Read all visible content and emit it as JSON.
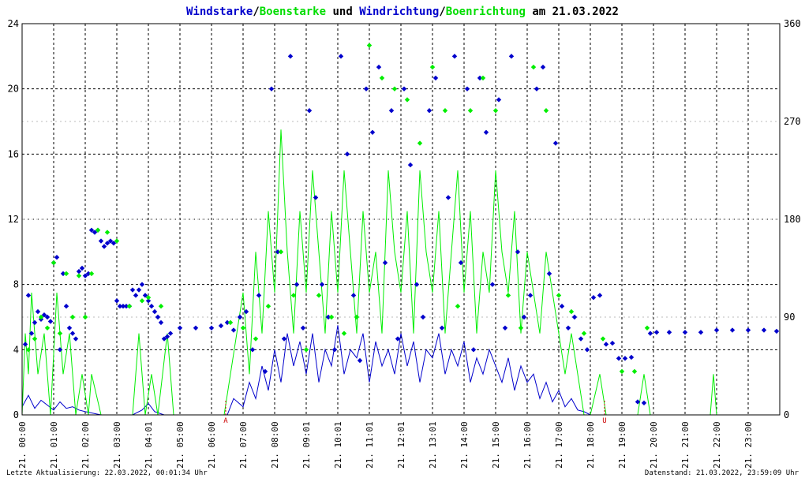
{
  "title": {
    "part1": "Windstarke",
    "sep1": "/",
    "part2": "Boenstarke",
    "part3": " und ",
    "part4": "Windrichtung",
    "sep2": "/",
    "part5": "Boenrichtung",
    "part6": " am 21.03.2022"
  },
  "footer": {
    "left": "Letzte Aktualisierung: 22.03.2022, 00:01:34 Uhr",
    "right": "Datenstand: 21.03.2022, 23:59:09 Uhr"
  },
  "colors": {
    "wind": "#0000cc",
    "gust": "#00ee00",
    "grid": "#000000",
    "marker": "#cc0000",
    "text": "#000000"
  },
  "chart_data": {
    "type": "line",
    "x_unit": "hour of day",
    "xlim": [
      0,
      24
    ],
    "ylim_left": [
      0,
      24
    ],
    "ylim_right": [
      0,
      360
    ],
    "yticks_left": [
      "0",
      "4",
      "8",
      "12",
      "16",
      "20",
      "24"
    ],
    "yticks_right": [
      "0",
      "90",
      "180",
      "270",
      "360"
    ],
    "xtick_labels": [
      "21. 00:00",
      "21. 01:00",
      "21. 02:00",
      "21. 03:00",
      "21. 04:01",
      "21. 05:00",
      "21. 06:00",
      "21. 07:00",
      "21. 08:00",
      "21. 09:01",
      "21. 10:01",
      "21. 11:01",
      "21. 12:01",
      "21. 13:01",
      "21. 14:00",
      "21. 15:00",
      "21. 16:00",
      "21. 17:00",
      "21. 18:00",
      "21. 19:00",
      "21. 20:00",
      "21. 21:00",
      "21. 22:00",
      "21. 23:00"
    ],
    "events": [
      {
        "label": "A",
        "x": 6.45
      },
      {
        "label": "U",
        "x": 18.45
      }
    ],
    "series": [
      {
        "name": "Windstarke",
        "axis": "left",
        "style": "line",
        "x": [
          0.0,
          0.2,
          0.4,
          0.6,
          0.8,
          1.0,
          1.2,
          1.4,
          1.6,
          1.8,
          2.0,
          2.5,
          3.0,
          3.5,
          3.8,
          4.0,
          4.2,
          4.5,
          5.0,
          5.5,
          6.0,
          6.5,
          6.7,
          7.0,
          7.2,
          7.4,
          7.6,
          7.8,
          8.0,
          8.2,
          8.4,
          8.6,
          8.8,
          9.0,
          9.2,
          9.4,
          9.6,
          9.8,
          10.0,
          10.2,
          10.4,
          10.6,
          10.8,
          11.0,
          11.2,
          11.4,
          11.6,
          11.8,
          12.0,
          12.2,
          12.4,
          12.6,
          12.8,
          13.0,
          13.2,
          13.4,
          13.6,
          13.8,
          14.0,
          14.2,
          14.4,
          14.6,
          14.8,
          15.0,
          15.2,
          15.4,
          15.6,
          15.8,
          16.0,
          16.2,
          16.4,
          16.6,
          16.8,
          17.0,
          17.2,
          17.4,
          17.6,
          17.8,
          18.0,
          18.5,
          19.0,
          19.5,
          20.0,
          21.0,
          22.0,
          23.0,
          23.9
        ],
        "y": [
          0.5,
          1.2,
          0.4,
          0.9,
          0.6,
          0.3,
          0.8,
          0.4,
          0.5,
          0.3,
          0.2,
          0.0,
          0.0,
          0.0,
          0.3,
          0.7,
          0.2,
          0.0,
          0.0,
          0.0,
          0.0,
          0.0,
          1.0,
          0.5,
          2.0,
          1.0,
          3.0,
          1.5,
          4.0,
          2.0,
          5.0,
          3.0,
          4.5,
          2.5,
          5.0,
          2.0,
          4.0,
          3.0,
          5.5,
          2.5,
          4.0,
          3.5,
          5.0,
          2.0,
          4.5,
          3.0,
          4.0,
          2.5,
          5.0,
          3.0,
          4.5,
          2.0,
          4.0,
          3.5,
          5.0,
          2.5,
          4.0,
          3.0,
          4.5,
          2.0,
          3.5,
          2.5,
          4.0,
          3.0,
          2.0,
          3.5,
          1.5,
          3.0,
          2.0,
          2.5,
          1.0,
          2.0,
          0.8,
          1.5,
          0.5,
          1.0,
          0.3,
          0.2,
          0.0,
          0.0,
          0.0,
          0.0,
          0.0,
          0.0,
          0.0,
          0.0,
          0.0
        ]
      },
      {
        "name": "Boenstarke",
        "axis": "left",
        "style": "line",
        "x": [
          0.0,
          0.1,
          0.2,
          0.3,
          0.5,
          0.7,
          0.9,
          1.1,
          1.3,
          1.5,
          1.7,
          1.9,
          2.1,
          2.2,
          2.5,
          3.5,
          3.7,
          3.9,
          4.1,
          4.3,
          4.6,
          4.8,
          5.0,
          6.4,
          6.6,
          6.8,
          7.0,
          7.2,
          7.4,
          7.6,
          7.8,
          8.0,
          8.2,
          8.4,
          8.6,
          8.8,
          9.0,
          9.2,
          9.4,
          9.6,
          9.8,
          10.0,
          10.2,
          10.4,
          10.6,
          10.8,
          11.0,
          11.2,
          11.4,
          11.6,
          11.8,
          12.0,
          12.2,
          12.4,
          12.6,
          12.8,
          13.0,
          13.2,
          13.4,
          13.6,
          13.8,
          14.0,
          14.2,
          14.4,
          14.6,
          14.8,
          15.0,
          15.2,
          15.4,
          15.6,
          15.8,
          16.0,
          16.2,
          16.4,
          16.6,
          16.8,
          17.0,
          17.2,
          17.4,
          17.6,
          17.8,
          18.0,
          18.3,
          18.5,
          19.0,
          19.5,
          19.7,
          19.9,
          20.1,
          21.5,
          21.8,
          21.9,
          22.0,
          23.9
        ],
        "y": [
          0.0,
          5.0,
          2.5,
          7.5,
          2.5,
          5.0,
          0.0,
          7.5,
          2.5,
          5.0,
          0.0,
          2.5,
          0.0,
          2.5,
          0.0,
          0.0,
          5.0,
          0.0,
          2.5,
          0.0,
          5.0,
          0.0,
          0.0,
          0.0,
          2.5,
          5.0,
          7.5,
          2.5,
          10.0,
          5.0,
          12.5,
          7.5,
          17.5,
          10.0,
          5.0,
          12.5,
          7.5,
          15.0,
          10.0,
          5.0,
          12.5,
          7.5,
          15.0,
          10.0,
          5.0,
          12.5,
          7.5,
          10.0,
          5.0,
          15.0,
          10.0,
          7.5,
          12.5,
          5.0,
          15.0,
          10.0,
          7.5,
          12.5,
          5.0,
          10.0,
          15.0,
          7.5,
          12.5,
          5.0,
          10.0,
          7.5,
          15.0,
          10.0,
          7.5,
          12.5,
          5.0,
          10.0,
          7.5,
          5.0,
          10.0,
          7.5,
          5.0,
          2.5,
          5.0,
          2.5,
          0.0,
          0.0,
          2.5,
          0.0,
          0.0,
          0.0,
          2.5,
          0.0,
          0.0,
          0.0,
          0.0,
          2.5,
          0.0,
          0.0
        ]
      },
      {
        "name": "Windrichtung",
        "axis": "right",
        "style": "points",
        "x": [
          0.1,
          0.2,
          0.3,
          0.4,
          0.5,
          0.6,
          0.7,
          0.8,
          0.9,
          1.0,
          1.1,
          1.2,
          1.3,
          1.4,
          1.5,
          1.6,
          1.7,
          1.8,
          1.9,
          2.0,
          2.1,
          2.2,
          2.3,
          2.4,
          2.5,
          2.6,
          2.7,
          2.8,
          2.9,
          3.0,
          3.1,
          3.2,
          3.3,
          3.4,
          3.5,
          3.6,
          3.7,
          3.8,
          3.9,
          4.0,
          4.1,
          4.2,
          4.3,
          4.4,
          4.5,
          4.6,
          4.7,
          5.0,
          5.5,
          6.0,
          6.3,
          6.5,
          6.7,
          6.9,
          7.1,
          7.3,
          7.5,
          7.7,
          7.9,
          8.1,
          8.3,
          8.5,
          8.7,
          8.9,
          9.1,
          9.3,
          9.5,
          9.7,
          9.9,
          10.1,
          10.3,
          10.5,
          10.7,
          10.9,
          11.1,
          11.3,
          11.5,
          11.7,
          11.9,
          12.1,
          12.3,
          12.5,
          12.7,
          12.9,
          13.1,
          13.3,
          13.5,
          13.7,
          13.9,
          14.1,
          14.3,
          14.5,
          14.7,
          14.9,
          15.1,
          15.3,
          15.5,
          15.7,
          15.9,
          16.1,
          16.3,
          16.5,
          16.7,
          16.9,
          17.1,
          17.3,
          17.5,
          17.7,
          17.9,
          18.1,
          18.3,
          18.5,
          18.7,
          18.9,
          19.1,
          19.3,
          19.5,
          19.7,
          19.9,
          20.1,
          20.5,
          21.0,
          21.5,
          22.0,
          22.5,
          23.0,
          23.5,
          23.9
        ],
        "y": [
          65,
          110,
          75,
          85,
          95,
          88,
          92,
          90,
          86,
          140,
          145,
          60,
          130,
          100,
          80,
          75,
          70,
          132,
          135,
          128,
          130,
          170,
          168,
          170,
          160,
          155,
          158,
          160,
          158,
          105,
          100,
          100,
          100,
          100,
          115,
          110,
          115,
          120,
          110,
          105,
          100,
          95,
          90,
          85,
          70,
          72,
          75,
          80,
          80,
          80,
          82,
          85,
          78,
          90,
          95,
          60,
          110,
          40,
          300,
          150,
          70,
          330,
          120,
          80,
          280,
          200,
          120,
          90,
          60,
          330,
          240,
          110,
          50,
          300,
          260,
          320,
          140,
          280,
          70,
          300,
          230,
          120,
          90,
          280,
          310,
          80,
          200,
          330,
          140,
          300,
          60,
          310,
          260,
          120,
          290,
          80,
          330,
          150,
          90,
          110,
          300,
          320,
          130,
          250,
          100,
          80,
          90,
          70,
          60,
          108,
          110,
          65,
          66,
          52,
          52,
          53,
          12,
          11,
          75,
          76,
          76,
          76,
          76,
          78,
          78,
          78,
          78,
          77
        ]
      },
      {
        "name": "Boenrichtung",
        "axis": "right",
        "style": "points",
        "x": [
          0.2,
          0.4,
          0.6,
          0.8,
          1.0,
          1.2,
          1.4,
          1.6,
          1.8,
          2.0,
          2.2,
          2.4,
          2.7,
          3.0,
          3.4,
          3.8,
          4.0,
          4.4,
          6.6,
          7.0,
          7.4,
          7.8,
          8.2,
          8.6,
          9.0,
          9.4,
          9.8,
          10.2,
          10.6,
          11.0,
          11.4,
          11.8,
          12.2,
          12.6,
          13.0,
          13.4,
          13.8,
          14.2,
          14.6,
          15.0,
          15.4,
          15.8,
          16.2,
          16.6,
          17.0,
          17.4,
          17.8,
          18.4,
          19.0,
          19.4,
          19.8
        ],
        "y": [
          60,
          70,
          90,
          80,
          140,
          75,
          130,
          90,
          128,
          90,
          130,
          170,
          168,
          160,
          100,
          105,
          108,
          100,
          85,
          80,
          70,
          100,
          150,
          110,
          60,
          110,
          90,
          75,
          90,
          340,
          310,
          300,
          290,
          250,
          320,
          280,
          100,
          280,
          310,
          280,
          110,
          80,
          320,
          280,
          110,
          95,
          75,
          70,
          40,
          40,
          80
        ]
      }
    ]
  }
}
